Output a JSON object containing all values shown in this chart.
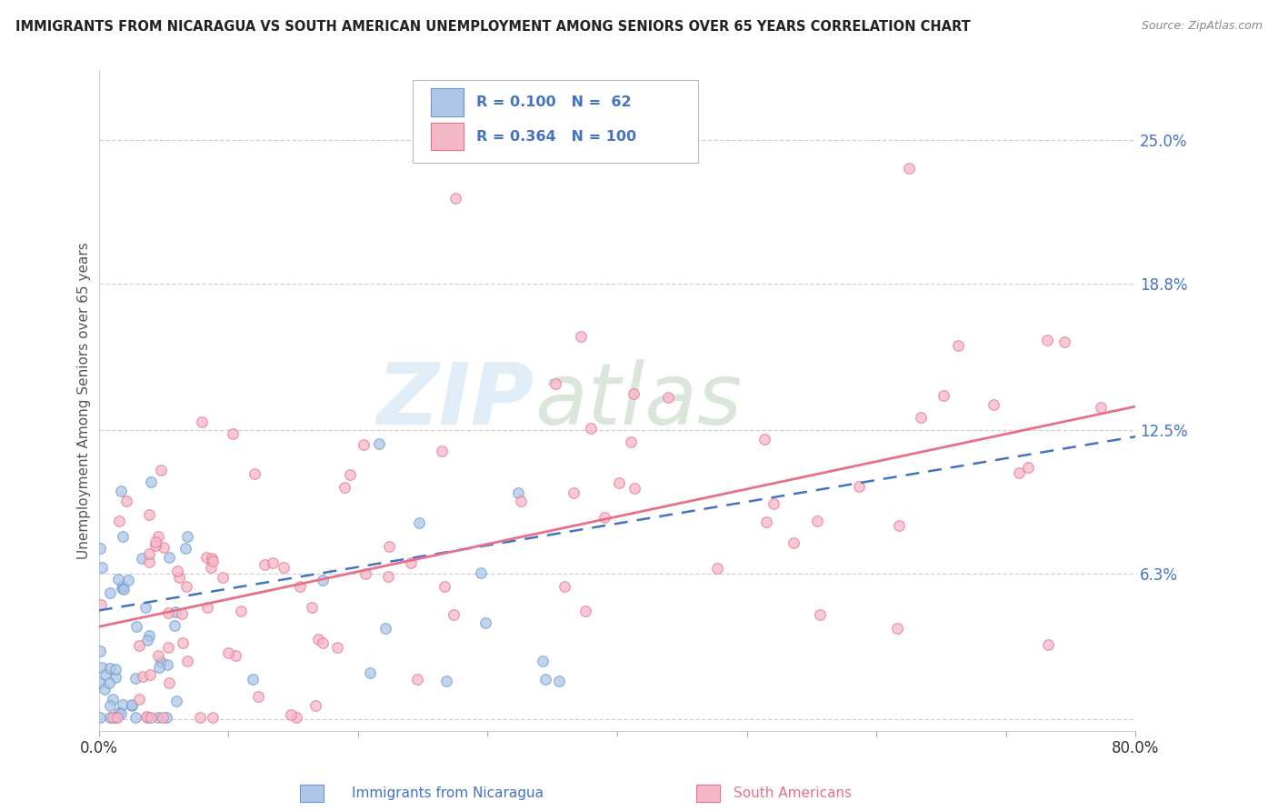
{
  "title": "IMMIGRANTS FROM NICARAGUA VS SOUTH AMERICAN UNEMPLOYMENT AMONG SENIORS OVER 65 YEARS CORRELATION CHART",
  "source": "Source: ZipAtlas.com",
  "ylabel": "Unemployment Among Seniors over 65 years",
  "xlim": [
    0.0,
    0.8
  ],
  "ylim": [
    -0.005,
    0.28
  ],
  "yticks": [
    0.0,
    0.063,
    0.125,
    0.188,
    0.25
  ],
  "ytick_labels": [
    "",
    "6.3%",
    "12.5%",
    "18.8%",
    "25.0%"
  ],
  "xticks": [
    0.0,
    0.1,
    0.2,
    0.3,
    0.4,
    0.5,
    0.6,
    0.7,
    0.8
  ],
  "xtick_labels": [
    "0.0%",
    "",
    "",
    "",
    "",
    "",
    "",
    "",
    "80.0%"
  ],
  "nicaragua_color": "#aec6e8",
  "nicaragua_edge": "#6699cc",
  "south_american_color": "#f5b8c8",
  "south_american_edge": "#e8708a",
  "legend_R1": "0.100",
  "legend_N1": "62",
  "legend_R2": "0.364",
  "legend_N2": "100",
  "trend1_color": "#4472c4",
  "trend2_color": "#e8708a",
  "watermark_zip": "ZIP",
  "watermark_atlas": "atlas",
  "background_color": "#ffffff",
  "grid_color": "#d0d0d0",
  "tick_color": "#4472c4",
  "title_color": "#222222",
  "ylabel_color": "#555555"
}
